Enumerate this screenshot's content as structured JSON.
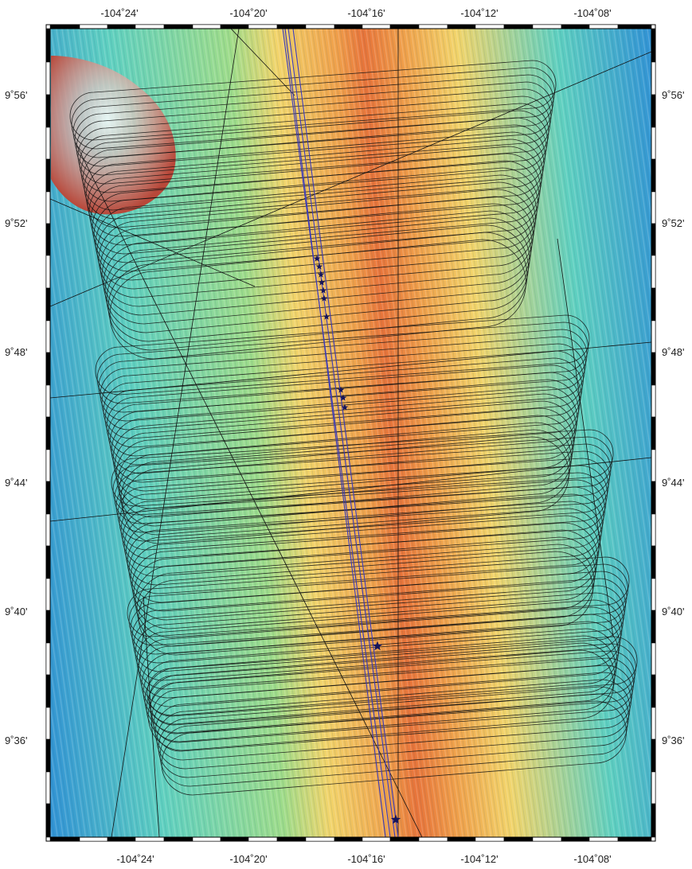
{
  "map": {
    "top_longitude_labels": [
      "-104˚24'",
      "-104˚20'",
      "-104˚16'",
      "-104˚12'",
      "-104˚08'"
    ],
    "bottom_longitude_labels": [
      "-104˚24'",
      "-104˚20'",
      "-104˚16'",
      "-104˚12'",
      "-104˚08'"
    ],
    "left_latitude_labels": [
      "9˚56'",
      "9˚52'",
      "9˚48'",
      "9˚44'",
      "9˚40'",
      "9˚36'"
    ],
    "right_latitude_labels": [
      "9˚56'",
      "9˚52'",
      "9˚48'",
      "9˚44'",
      "9˚40'",
      "9˚36'"
    ],
    "colors": {
      "deep": "#2f8fd6",
      "mid": "#5fd0c0",
      "shallow_green": "#9edc8a",
      "ridge_yellow": "#f2d46a",
      "ridge_orange": "#f0a04a",
      "ridge_axis": "#e8743a",
      "seamount": "#b8483a",
      "survey_track": "#111111",
      "axis_track": "#3b3bb8",
      "event_star": "#15155a"
    },
    "features": [
      "seamount",
      "ridge-axis",
      "survey-tracks",
      "axis-tracks",
      "event-stars"
    ]
  }
}
